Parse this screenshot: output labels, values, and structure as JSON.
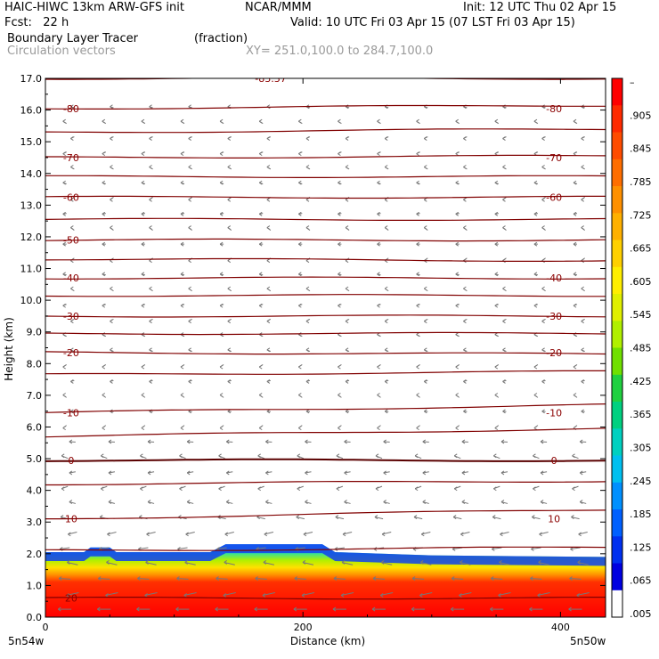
{
  "header": {
    "model": "HAIC-HIWC 13km ARW-GFS init",
    "org": "NCAR/MMM",
    "init": "Init: 12 UTC Thu 02 Apr 15",
    "fcst": "Fcst:   22 h",
    "valid": "Valid: 10 UTC Fri 03 Apr 15 (07 LST Fri 03 Apr 15)",
    "field": "Boundary Layer Tracer",
    "units": "(fraction)",
    "overlay": "Circulation vectors",
    "xy": "XY= 251.0,100.0 to 284.7,100.0"
  },
  "chart_data": {
    "type": "heatmap",
    "xlabel": "Distance (km)",
    "ylabel": "Height (km)",
    "xlim": [
      0,
      435
    ],
    "ylim": [
      0,
      17
    ],
    "x_ticks": [
      {
        "v": 0,
        "label": "0"
      },
      {
        "v": 200,
        "label": "200"
      },
      {
        "v": 400,
        "label": "400"
      }
    ],
    "x_endpoints": {
      "left": "5n54w",
      "right": "5n50w"
    },
    "y_ticks": [
      {
        "v": 0,
        "label": "0.0"
      },
      {
        "v": 1,
        "label": "1.0"
      },
      {
        "v": 2,
        "label": "2.0"
      },
      {
        "v": 3,
        "label": "3.0"
      },
      {
        "v": 4,
        "label": "4.0"
      },
      {
        "v": 5,
        "label": "5.0"
      },
      {
        "v": 6,
        "label": "6.0"
      },
      {
        "v": 7,
        "label": "7.0"
      },
      {
        "v": 8,
        "label": "8.0"
      },
      {
        "v": 9,
        "label": "9.0"
      },
      {
        "v": 10,
        "label": "10.0"
      },
      {
        "v": 11,
        "label": "11.0"
      },
      {
        "v": 12,
        "label": "12.0"
      },
      {
        "v": 13,
        "label": "13.0"
      },
      {
        "v": 14,
        "label": "14.0"
      },
      {
        "v": 15,
        "label": "15.0"
      },
      {
        "v": 16,
        "label": "16.0"
      },
      {
        "v": 17,
        "label": "17.0"
      }
    ],
    "colorbar": {
      "labels": [
        "–",
        ".905",
        ".845",
        ".785",
        ".725",
        ".665",
        ".605",
        ".545",
        ".485",
        ".425",
        ".365",
        ".305",
        ".245",
        ".185",
        ".125",
        ".065",
        ".005"
      ],
      "colors": [
        "#ff0000",
        "#ff2a00",
        "#ff4c00",
        "#ff6e00",
        "#ff9000",
        "#ffb000",
        "#ffd000",
        "#ffee00",
        "#e0f000",
        "#b0f000",
        "#70e000",
        "#20d040",
        "#00d080",
        "#00d0c0",
        "#00c0f0",
        "#0090ff",
        "#0060ff",
        "#0030f0",
        "#0000e0",
        "#ffffff"
      ]
    },
    "tracer_top_km": [
      {
        "x": 0,
        "z": 2.05
      },
      {
        "x": 30,
        "z": 2.05
      },
      {
        "x": 35,
        "z": 2.2
      },
      {
        "x": 50,
        "z": 2.2
      },
      {
        "x": 55,
        "z": 2.05
      },
      {
        "x": 128,
        "z": 2.05
      },
      {
        "x": 140,
        "z": 2.3
      },
      {
        "x": 215,
        "z": 2.3
      },
      {
        "x": 225,
        "z": 2.05
      },
      {
        "x": 300,
        "z": 1.95
      },
      {
        "x": 435,
        "z": 1.9
      }
    ],
    "temperature_contours": [
      {
        "level": "-83.37",
        "z": 17.0,
        "tilt": 0.0
      },
      {
        "level": "-80",
        "z": 16.05,
        "tilt": 0.1
      },
      {
        "level": "-75",
        "z": 15.3,
        "tilt": 0.1
      },
      {
        "level": "-70",
        "z": 14.5,
        "tilt": 0.05
      },
      {
        "level": "-65",
        "z": 13.9,
        "tilt": 0.0
      },
      {
        "level": "-60",
        "z": 13.25,
        "tilt": 0.0
      },
      {
        "level": "-55",
        "z": 12.55,
        "tilt": 0.0
      },
      {
        "level": "-50",
        "z": 11.9,
        "tilt": 0.0
      },
      {
        "level": "-45",
        "z": 11.3,
        "tilt": -0.05
      },
      {
        "level": "-40",
        "z": 10.7,
        "tilt": 0.0
      },
      {
        "level": "-35",
        "z": 10.15,
        "tilt": 0.0
      },
      {
        "level": "-30",
        "z": 9.5,
        "tilt": 0.0
      },
      {
        "level": "-25",
        "z": 8.95,
        "tilt": 0.0
      },
      {
        "level": "-20",
        "z": 8.35,
        "tilt": -0.05
      },
      {
        "level": "-15",
        "z": 7.65,
        "tilt": 0.1
      },
      {
        "level": "-10",
        "z": 6.45,
        "tilt": 0.25
      },
      {
        "level": "-5",
        "z": 5.7,
        "tilt": 0.25
      },
      {
        "level": "0",
        "z": 4.95,
        "tilt": 0.0
      },
      {
        "level": "5",
        "z": 4.2,
        "tilt": 0.1
      },
      {
        "level": "10",
        "z": 3.1,
        "tilt": 0.3
      },
      {
        "level": "15",
        "z": 2.1,
        "tilt": 0.1
      },
      {
        "level": "20",
        "z": 0.6,
        "tilt": 0.0
      }
    ],
    "labeled_contours": {
      "left": [
        {
          "text": "-80",
          "z": 16.05
        },
        {
          "text": "-70",
          "z": 14.5
        },
        {
          "text": "-60",
          "z": 13.25
        },
        {
          "text": "-50",
          "z": 11.9
        },
        {
          "text": "-40",
          "z": 10.7
        },
        {
          "text": "-30",
          "z": 9.5
        },
        {
          "text": "-20",
          "z": 8.35
        },
        {
          "text": "-10",
          "z": 6.45
        },
        {
          "text": "0",
          "z": 4.95
        },
        {
          "text": "10",
          "z": 3.1
        },
        {
          "text": "20",
          "z": 0.6
        }
      ],
      "right": [
        {
          "text": "-80",
          "z": 16.05
        },
        {
          "text": "-70",
          "z": 14.5
        },
        {
          "text": "-60",
          "z": 13.25
        },
        {
          "text": "-40",
          "z": 10.7
        },
        {
          "text": "-30",
          "z": 9.5
        },
        {
          "text": "-20",
          "z": 8.35
        },
        {
          "text": "-10",
          "z": 6.45
        },
        {
          "text": "0",
          "z": 4.95
        },
        {
          "text": "10",
          "z": 3.1
        }
      ],
      "top": {
        "text": "-83.37",
        "x": 175
      }
    },
    "wind_vectors": "light easterly flow aloft, stronger easterly flow in lowest 3 km",
    "grid": false
  }
}
